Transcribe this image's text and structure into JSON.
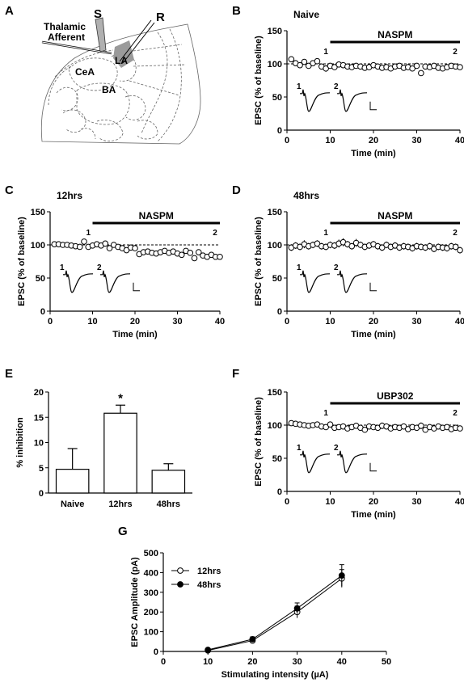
{
  "panels": {
    "A": {
      "label": "A",
      "labels": {
        "thalamic": "Thalamic",
        "afferent": "Afferent",
        "S": "S",
        "R": "R",
        "LA": "LA",
        "CeA": "CeA",
        "BA": "BA"
      }
    },
    "E_star": "*"
  },
  "chart_data": [
    {
      "id": "B",
      "panel_label": "B",
      "type": "scatter",
      "title": "Naive",
      "xlabel": "Time (min)",
      "ylabel": "EPSC (% of baseline)",
      "xlim": [
        0,
        40
      ],
      "ylim": [
        0,
        150
      ],
      "xticks": [
        0,
        10,
        20,
        30,
        40
      ],
      "yticks": [
        0,
        50,
        100,
        150
      ],
      "drug_label": "NASPM",
      "drug_range": [
        10,
        40
      ],
      "reference_line": 100,
      "markers": [
        "1",
        "2"
      ],
      "marker_times": [
        9,
        40
      ],
      "trace_labels": [
        "1",
        "2"
      ],
      "series": [
        {
          "name": "",
          "x": [
            1,
            2,
            3,
            4,
            5,
            6,
            7,
            8,
            9,
            10,
            11,
            12,
            13,
            14,
            15,
            16,
            17,
            18,
            19,
            20,
            21,
            22,
            23,
            24,
            25,
            26,
            27,
            28,
            29,
            30,
            31,
            32,
            33,
            34,
            35,
            36,
            37,
            38,
            39,
            40
          ],
          "y": [
            107,
            101,
            98,
            103,
            97,
            101,
            104,
            96,
            93,
            97,
            95,
            99,
            98,
            96,
            95,
            97,
            96,
            94,
            95,
            98,
            96,
            94,
            95,
            93,
            96,
            97,
            94,
            95,
            93,
            97,
            86,
            96,
            95,
            97,
            94,
            93,
            95,
            97,
            96,
            95
          ],
          "err": [
            3,
            3,
            4,
            3,
            3,
            3,
            4,
            4,
            5,
            4,
            4,
            3,
            3,
            3,
            3,
            3,
            3,
            3,
            3,
            4,
            3,
            3,
            3,
            4,
            4,
            3,
            3,
            3,
            4,
            3,
            4,
            3,
            3,
            3,
            3,
            3,
            3,
            3,
            3,
            3
          ]
        }
      ]
    },
    {
      "id": "C",
      "panel_label": "C",
      "type": "scatter",
      "title": "12hrs",
      "xlabel": "Time (min)",
      "ylabel": "EPSC (% of baseline)",
      "xlim": [
        0,
        40
      ],
      "ylim": [
        0,
        150
      ],
      "xticks": [
        0,
        10,
        20,
        30,
        40
      ],
      "yticks": [
        0,
        50,
        100,
        150
      ],
      "drug_label": "NASPM",
      "drug_range": [
        10,
        40
      ],
      "reference_line": 100,
      "markers": [
        "1",
        "2"
      ],
      "marker_times": [
        9,
        40
      ],
      "trace_labels": [
        "1",
        "2"
      ],
      "series": [
        {
          "name": "",
          "x": [
            1,
            2,
            3,
            4,
            5,
            6,
            7,
            8,
            9,
            10,
            11,
            12,
            13,
            14,
            15,
            16,
            17,
            18,
            19,
            20,
            21,
            22,
            23,
            24,
            25,
            26,
            27,
            28,
            29,
            30,
            31,
            32,
            33,
            34,
            35,
            36,
            37,
            38,
            39,
            40
          ],
          "y": [
            101,
            101,
            100,
            100,
            99,
            98,
            97,
            105,
            97,
            99,
            101,
            99,
            102,
            95,
            100,
            97,
            95,
            92,
            96,
            95,
            86,
            89,
            90,
            88,
            87,
            89,
            91,
            88,
            90,
            87,
            85,
            91,
            88,
            80,
            89,
            84,
            82,
            85,
            82,
            82
          ],
          "err": [
            3,
            2,
            3,
            3,
            3,
            3,
            3,
            4,
            3,
            3,
            3,
            3,
            3,
            4,
            4,
            3,
            3,
            3,
            3,
            3,
            4,
            4,
            3,
            4,
            3,
            3,
            3,
            4,
            3,
            3,
            3,
            4,
            3,
            3,
            4,
            3,
            3,
            3,
            3,
            3
          ]
        }
      ]
    },
    {
      "id": "D",
      "panel_label": "D",
      "type": "scatter",
      "title": "48hrs",
      "xlabel": "Time (min)",
      "ylabel": "EPSC (% of baseline)",
      "xlim": [
        0,
        40
      ],
      "ylim": [
        0,
        150
      ],
      "xticks": [
        0,
        10,
        20,
        30,
        40
      ],
      "yticks": [
        0,
        50,
        100,
        150
      ],
      "drug_label": "NASPM",
      "drug_range": [
        10,
        40
      ],
      "reference_line": 100,
      "markers": [
        "1",
        "2"
      ],
      "marker_times": [
        9,
        40
      ],
      "trace_labels": [
        "1",
        "2"
      ],
      "series": [
        {
          "name": "",
          "x": [
            1,
            2,
            3,
            4,
            5,
            6,
            7,
            8,
            9,
            10,
            11,
            12,
            13,
            14,
            15,
            16,
            17,
            18,
            19,
            20,
            21,
            22,
            23,
            24,
            25,
            26,
            27,
            28,
            29,
            30,
            31,
            32,
            33,
            34,
            35,
            36,
            37,
            38,
            39,
            40
          ],
          "y": [
            96,
            99,
            97,
            101,
            98,
            100,
            102,
            98,
            97,
            100,
            99,
            102,
            104,
            101,
            98,
            103,
            100,
            97,
            99,
            101,
            98,
            96,
            100,
            97,
            99,
            96,
            98,
            97,
            95,
            98,
            97,
            96,
            98,
            94,
            97,
            96,
            95,
            98,
            97,
            92
          ],
          "err": [
            5,
            5,
            5,
            6,
            5,
            5,
            5,
            5,
            5,
            5,
            5,
            6,
            6,
            5,
            5,
            6,
            5,
            5,
            5,
            5,
            5,
            5,
            5,
            5,
            5,
            5,
            5,
            5,
            5,
            5,
            5,
            5,
            5,
            5,
            5,
            5,
            5,
            5,
            5,
            5
          ]
        }
      ]
    },
    {
      "id": "E",
      "panel_label": "E",
      "type": "bar",
      "title": "",
      "xlabel": "",
      "ylabel": "% inhibition",
      "ylim": [
        0,
        20
      ],
      "yticks": [
        0,
        5,
        10,
        15,
        20
      ],
      "categories": [
        "Naive",
        "12hrs",
        "48hrs"
      ],
      "values": [
        4.7,
        15.8,
        4.5
      ],
      "errors": [
        4.1,
        1.6,
        1.3
      ],
      "significant": [
        false,
        true,
        false
      ]
    },
    {
      "id": "F",
      "panel_label": "F",
      "type": "scatter",
      "title": "",
      "xlabel": "Time (min)",
      "ylabel": "EPSC (% of baseline)",
      "xlim": [
        0,
        40
      ],
      "ylim": [
        0,
        150
      ],
      "xticks": [
        0,
        10,
        20,
        30,
        40
      ],
      "yticks": [
        0,
        50,
        100,
        150
      ],
      "drug_label": "UBP302",
      "drug_range": [
        10,
        40
      ],
      "reference_line": 100,
      "markers": [
        "1",
        "2"
      ],
      "marker_times": [
        9,
        40
      ],
      "trace_labels": [
        "1",
        "2"
      ],
      "series": [
        {
          "name": "",
          "x": [
            1,
            2,
            3,
            4,
            5,
            6,
            7,
            8,
            9,
            10,
            11,
            12,
            13,
            14,
            15,
            16,
            17,
            18,
            19,
            20,
            21,
            22,
            23,
            24,
            25,
            26,
            27,
            28,
            29,
            30,
            31,
            32,
            33,
            34,
            35,
            36,
            37,
            38,
            39,
            40
          ],
          "y": [
            103,
            102,
            101,
            100,
            99,
            100,
            101,
            98,
            97,
            101,
            96,
            97,
            98,
            95,
            97,
            99,
            96,
            93,
            98,
            97,
            96,
            99,
            98,
            95,
            97,
            96,
            98,
            94,
            97,
            96,
            99,
            93,
            97,
            95,
            98,
            96,
            97,
            94,
            96,
            95
          ],
          "err": [
            3,
            3,
            3,
            3,
            3,
            3,
            3,
            3,
            3,
            3,
            4,
            4,
            4,
            4,
            4,
            4,
            4,
            4,
            4,
            4,
            4,
            5,
            4,
            4,
            4,
            4,
            4,
            4,
            4,
            4,
            5,
            4,
            4,
            4,
            4,
            4,
            4,
            4,
            4,
            4
          ]
        }
      ]
    },
    {
      "id": "G",
      "panel_label": "G",
      "type": "line",
      "title": "",
      "xlabel": "Stimulating intensity (µA)",
      "ylabel": "EPSC Amplitude (pA)",
      "xlim": [
        0,
        50
      ],
      "ylim": [
        0,
        500
      ],
      "xticks": [
        0,
        10,
        20,
        30,
        40,
        50
      ],
      "yticks": [
        0,
        100,
        200,
        300,
        400,
        500
      ],
      "legend_position": "top-left",
      "series": [
        {
          "name": "12hrs",
          "marker": "open",
          "x": [
            10,
            20,
            30,
            40
          ],
          "y": [
            5,
            55,
            200,
            370
          ],
          "err": [
            3,
            10,
            30,
            45
          ]
        },
        {
          "name": "48hrs",
          "marker": "filled",
          "x": [
            10,
            20,
            30,
            40
          ],
          "y": [
            8,
            62,
            218,
            385
          ],
          "err": [
            3,
            12,
            28,
            55
          ]
        }
      ]
    }
  ]
}
